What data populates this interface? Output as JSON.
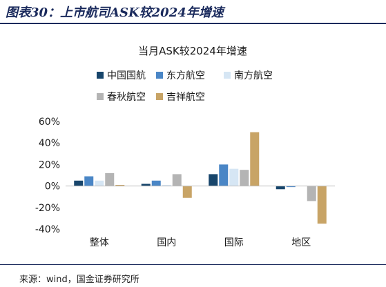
{
  "figure": {
    "title": "图表30：上市航司ASK较2024年增速",
    "source": "来源：wind，国金证券研究所"
  },
  "colors": {
    "series": [
      "#17456b",
      "#4a86c6",
      "#d6e6f4",
      "#b4b4b4",
      "#c8a466"
    ],
    "axis": "#bfbfbf",
    "brand": "#1a2a5c"
  },
  "chart_data": {
    "type": "bar",
    "title": "当月ASK较2024年增速",
    "categories": [
      "整体",
      "国内",
      "国际",
      "地区"
    ],
    "series": [
      {
        "name": "中国国航",
        "values": [
          5,
          2,
          11,
          -3
        ]
      },
      {
        "name": "东方航空",
        "values": [
          9,
          5,
          20,
          -1
        ]
      },
      {
        "name": "南方航空",
        "values": [
          5,
          1,
          16,
          0
        ]
      },
      {
        "name": "春秋航空",
        "values": [
          12,
          11,
          15,
          -14
        ]
      },
      {
        "name": "吉祥航空",
        "values": [
          1,
          -11,
          50,
          -35
        ]
      }
    ],
    "yticks": [
      "60%",
      "40%",
      "20%",
      "0%",
      "-20%",
      "-40%"
    ],
    "ylim": [
      -40,
      60
    ],
    "ylabel": "",
    "xlabel": "",
    "grid": false,
    "legend": "top"
  }
}
